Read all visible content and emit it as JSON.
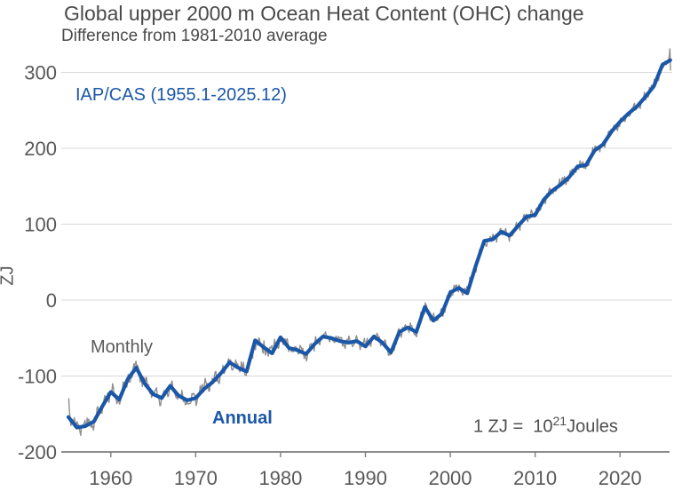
{
  "title": "Global upper 2000 m Ocean Heat Content (OHC) change",
  "subtitle": "Difference from 1981-2010 average",
  "dataset_label": "IAP/CAS (1955.1-2025.12)",
  "y_axis_label": "ZJ",
  "series_labels": {
    "monthly": "Monthly",
    "annual": "Annual"
  },
  "unit_note": {
    "prefix": "1 ZJ =  10",
    "superscript": "21",
    "suffix": "Joules"
  },
  "colors": {
    "annual_line": "#1b57a8",
    "monthly_line": "#8f8f8f",
    "gridline": "#d8d8d8",
    "axis": "#7d7d7d",
    "tick_text": "#595959",
    "title_text": "#4a4a4a",
    "accent_blue": "#1b57a8"
  },
  "chart_data": {
    "type": "line",
    "title": "Global upper 2000 m Ocean Heat Content (OHC) change",
    "subtitle": "Difference from 1981-2010 average",
    "xlabel": "",
    "ylabel": "ZJ",
    "xlim": [
      1955,
      2026
    ],
    "ylim": [
      -200,
      320
    ],
    "x_ticks": [
      1960,
      1970,
      1980,
      1990,
      2000,
      2010,
      2020
    ],
    "y_ticks": [
      -200,
      -100,
      0,
      100,
      200,
      300
    ],
    "grid": "horizontal",
    "legend_position": "inline-annotations",
    "series": [
      {
        "name": "Annual",
        "color": "#1b57a8",
        "start_year": 1955,
        "values": [
          -154,
          -168,
          -166,
          -160,
          -140,
          -121,
          -131,
          -104,
          -89,
          -110,
          -124,
          -129,
          -113,
          -126,
          -132,
          -129,
          -117,
          -108,
          -96,
          -82,
          -89,
          -94,
          -53,
          -62,
          -70,
          -49,
          -63,
          -66,
          -71,
          -58,
          -48,
          -50,
          -54,
          -56,
          -54,
          -61,
          -48,
          -56,
          -69,
          -42,
          -36,
          -42,
          -9,
          -27,
          -18,
          10,
          16,
          9,
          45,
          78,
          80,
          90,
          85,
          98,
          110,
          112,
          132,
          144,
          152,
          162,
          176,
          178,
          197,
          205,
          222,
          235,
          246,
          255,
          268,
          282,
          310
        ],
        "line_end_value": 316
      },
      {
        "name": "Monthly",
        "color": "#8f8f8f",
        "coverage": "1955.1 - 2025.12",
        "description": "Monthly values oscillating around the annual curve",
        "variability_zj": {
          "1955-1979": 11.5,
          "1980-2004": 9,
          "2005-2025": 7.5
        },
        "notable_points": {
          "first_month": -130,
          "minimum": -185,
          "maximum": 331,
          "last_month": 303
        },
        "overrides": {
          "0": -130,
          "1": -146,
          "2": -158,
          "848": 315,
          "849": 322,
          "850": 331,
          "851": 303
        }
      }
    ]
  }
}
